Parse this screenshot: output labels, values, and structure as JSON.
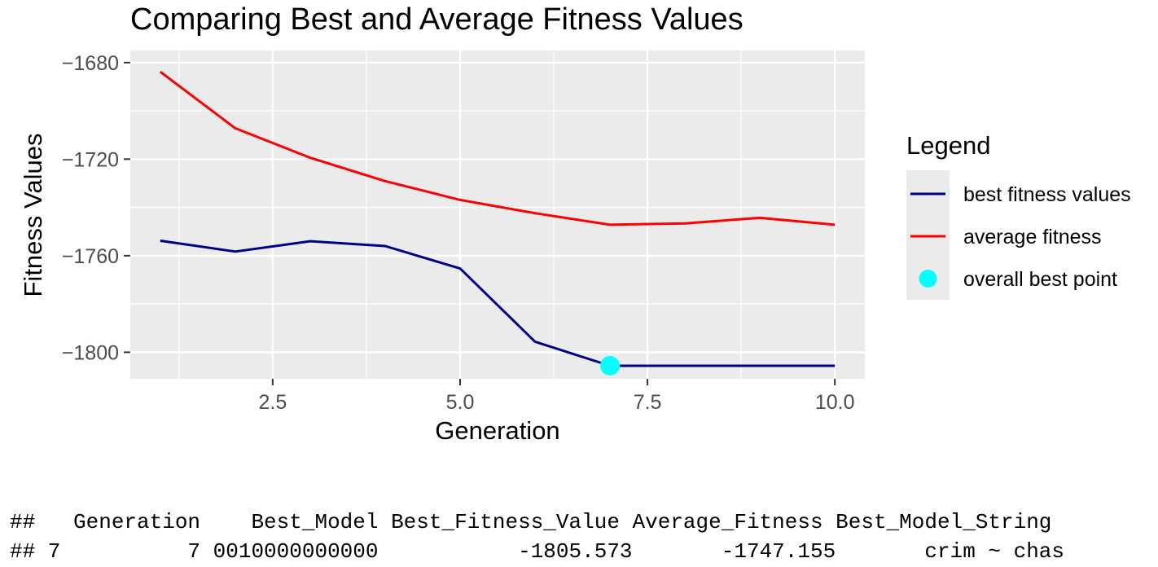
{
  "chart_data": {
    "type": "line",
    "title": "Comparing Best and Average Fitness Values",
    "xlabel": "Generation",
    "ylabel": "Fitness Values",
    "xlim": [
      0.6,
      10.4
    ],
    "ylim": [
      -1811,
      -1675
    ],
    "x_ticks": [
      2.5,
      5.0,
      7.5,
      10.0
    ],
    "x_tick_labels": [
      "2.5",
      "5.0",
      "7.5",
      "10.0"
    ],
    "y_ticks": [
      -1680,
      -1720,
      -1760,
      -1800
    ],
    "y_tick_labels": [
      "−1680",
      "−1720",
      "−1760",
      "−1800"
    ],
    "grid": true,
    "legend_title": "Legend",
    "legend_placement": "right",
    "series": [
      {
        "name": "best fitness values",
        "color": "#00008B",
        "x": [
          1,
          2,
          3,
          4,
          5,
          6,
          7,
          8,
          9,
          10
        ],
        "values": [
          -1753.8,
          -1758.3,
          -1754.0,
          -1756.0,
          -1765.3,
          -1795.6,
          -1805.6,
          -1805.6,
          -1805.6,
          -1805.6
        ]
      },
      {
        "name": "average fitness",
        "color": "#FF0000",
        "x": [
          1,
          2,
          3,
          4,
          5,
          6,
          7,
          8,
          9,
          10
        ],
        "values": [
          -1683.8,
          -1707.2,
          -1719.4,
          -1729.1,
          -1736.9,
          -1742.4,
          -1747.2,
          -1746.6,
          -1744.3,
          -1747.2
        ]
      }
    ],
    "points": [
      {
        "name": "overall best point",
        "color": "#00FFFF",
        "x": 7,
        "y": -1805.573
      }
    ]
  },
  "console": {
    "header": "##   Generation    Best_Model Best_Fitness_Value Average_Fitness Best_Model_String",
    "row": "## 7          7 0010000000000           -1805.573       -1747.155       crim ~ chas"
  }
}
